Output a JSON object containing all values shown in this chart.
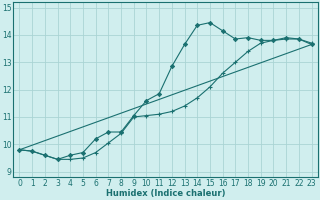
{
  "xlabel": "Humidex (Indice chaleur)",
  "bg_color": "#d0eeee",
  "grid_color": "#aad4d4",
  "line_color": "#1a7070",
  "xlim": [
    -0.5,
    23.5
  ],
  "ylim": [
    8.8,
    15.2
  ],
  "yticks": [
    9,
    10,
    11,
    12,
    13,
    14,
    15
  ],
  "xticks": [
    0,
    1,
    2,
    3,
    4,
    5,
    6,
    7,
    8,
    9,
    10,
    11,
    12,
    13,
    14,
    15,
    16,
    17,
    18,
    19,
    20,
    21,
    22,
    23
  ],
  "line1_x": [
    0,
    1,
    2,
    3,
    4,
    5,
    6,
    7,
    8,
    9,
    10,
    11,
    12,
    13,
    14,
    15,
    16,
    17,
    18,
    19,
    20,
    21,
    22,
    23
  ],
  "line1_y": [
    9.8,
    9.75,
    9.6,
    9.45,
    9.45,
    9.5,
    9.7,
    10.05,
    10.4,
    11.0,
    11.05,
    11.1,
    11.2,
    11.4,
    11.7,
    12.1,
    12.6,
    13.0,
    13.4,
    13.7,
    13.8,
    13.85,
    13.85,
    13.7
  ],
  "line2_x": [
    0,
    1,
    2,
    3,
    4,
    5,
    6,
    7,
    8,
    9,
    10,
    11,
    12,
    13,
    14,
    15,
    16,
    17,
    18,
    19,
    20,
    21,
    22,
    23
  ],
  "line2_y": [
    9.8,
    9.75,
    9.6,
    9.45,
    9.6,
    9.7,
    10.2,
    10.45,
    10.45,
    11.05,
    11.6,
    11.85,
    12.85,
    13.65,
    14.35,
    14.45,
    14.15,
    13.85,
    13.9,
    13.8,
    13.8,
    13.9,
    13.85,
    13.65
  ],
  "line3_x": [
    0,
    23
  ],
  "line3_y": [
    9.8,
    13.65
  ]
}
